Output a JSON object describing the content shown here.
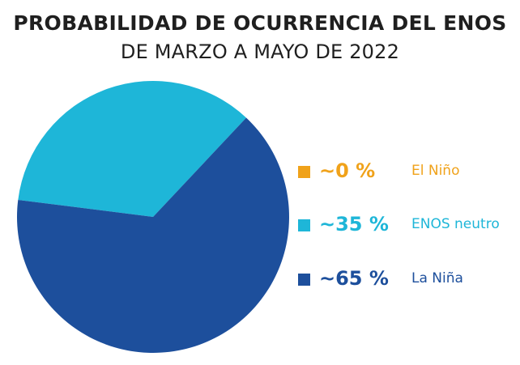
{
  "chart_data": {
    "type": "pie",
    "title": "PROBABILIDAD DE OCURRENCIA DEL ENOS",
    "subtitle": "DE MARZO A MAYO DE 2022",
    "slices": [
      {
        "label": "El Niño",
        "value": 0,
        "value_label": "~0 %",
        "color": "#f0a21a"
      },
      {
        "label": "ENOS neutro",
        "value": 35,
        "value_label": "~35 %",
        "color": "#1eb6d8"
      },
      {
        "label": "La Niña",
        "value": 65,
        "value_label": "~65 %",
        "color": "#1d4f9c"
      }
    ],
    "legend_position": "right"
  }
}
